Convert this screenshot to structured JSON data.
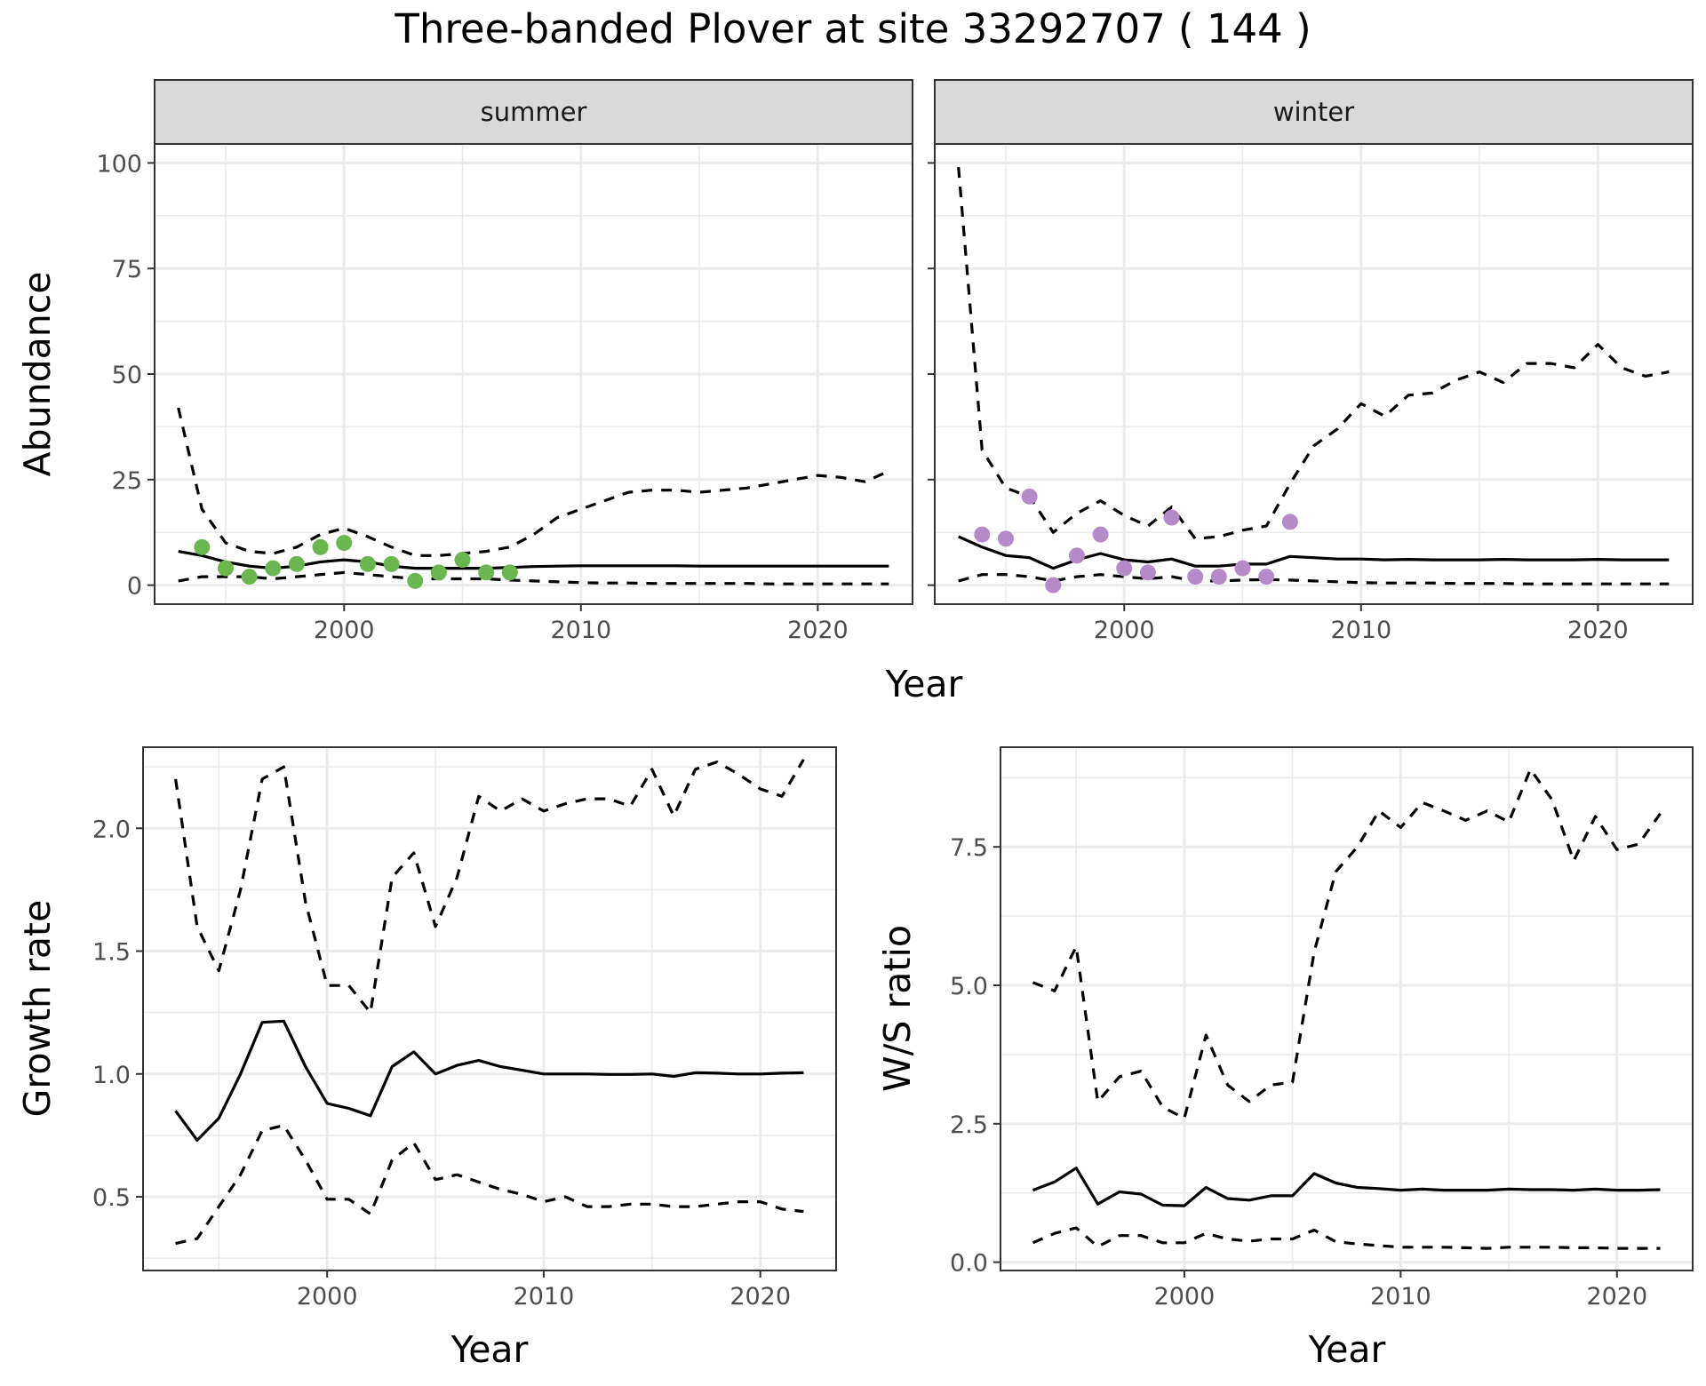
{
  "title": "Three-banded Plover at site 33292707 ( 144 )",
  "colors": {
    "summer_points": "#6ab74f",
    "winter_points": "#b48ac8",
    "line": "#000000",
    "grid": "#ebebeb",
    "strip_bg": "#d9d9d9"
  },
  "chart_data": [
    {
      "type": "line",
      "facet": "summer",
      "xlabel": "Year",
      "ylabel": "Abundance",
      "xlim": [
        1992,
        2024
      ],
      "ylim": [
        -4.5,
        104.5
      ],
      "xticks": [
        2000,
        2010,
        2020
      ],
      "yticks": [
        0,
        25,
        50,
        75,
        100
      ],
      "grid": true,
      "series": [
        {
          "role": "estimate",
          "style": "solid",
          "x": [
            1993,
            1994,
            1995,
            1996,
            1997,
            1998,
            1999,
            2000,
            2001,
            2002,
            2003,
            2004,
            2005,
            2006,
            2007,
            2008,
            2009,
            2010,
            2011,
            2012,
            2013,
            2014,
            2015,
            2016,
            2017,
            2018,
            2019,
            2020,
            2021,
            2022,
            2023
          ],
          "y": [
            8,
            7,
            5.5,
            4.5,
            4,
            4.5,
            5.5,
            6,
            5.5,
            4.5,
            4,
            4,
            4,
            4,
            4.2,
            4.4,
            4.5,
            4.6,
            4.6,
            4.6,
            4.6,
            4.6,
            4.5,
            4.5,
            4.5,
            4.5,
            4.5,
            4.5,
            4.5,
            4.5,
            4.5
          ]
        },
        {
          "role": "upper",
          "style": "dashed",
          "x": [
            1993,
            1994,
            1995,
            1996,
            1997,
            1998,
            1999,
            2000,
            2001,
            2002,
            2003,
            2004,
            2005,
            2006,
            2007,
            2008,
            2009,
            2010,
            2011,
            2012,
            2013,
            2014,
            2015,
            2016,
            2017,
            2018,
            2019,
            2020,
            2021,
            2022,
            2023
          ],
          "y": [
            42,
            18,
            10,
            8,
            7.5,
            9,
            12,
            13.5,
            11.5,
            9,
            7,
            7,
            7.5,
            8,
            9,
            12,
            16,
            18,
            20,
            22,
            22.5,
            22.5,
            22,
            22.5,
            23,
            24,
            25,
            26,
            25.5,
            24.5,
            27
          ]
        },
        {
          "role": "lower",
          "style": "dashed",
          "x": [
            1993,
            1994,
            1995,
            1996,
            1997,
            1998,
            1999,
            2000,
            2001,
            2002,
            2003,
            2004,
            2005,
            2006,
            2007,
            2008,
            2009,
            2010,
            2011,
            2012,
            2013,
            2014,
            2015,
            2016,
            2017,
            2018,
            2019,
            2020,
            2021,
            2022,
            2023
          ],
          "y": [
            1,
            2,
            2,
            2,
            1.5,
            2,
            2.5,
            3,
            2.5,
            2,
            1.5,
            1.5,
            1.5,
            1.5,
            1.2,
            1,
            0.8,
            0.6,
            0.5,
            0.5,
            0.4,
            0.4,
            0.4,
            0.4,
            0.4,
            0.3,
            0.3,
            0.3,
            0.3,
            0.3,
            0.3
          ]
        }
      ],
      "points": {
        "x": [
          1994,
          1995,
          1996,
          1997,
          1998,
          1999,
          2000,
          2001,
          2002,
          2003,
          2004,
          2005,
          2006,
          2007
        ],
        "y": [
          9,
          4,
          2,
          4,
          5,
          9,
          10,
          5,
          5,
          1,
          3,
          6,
          3,
          3
        ]
      }
    },
    {
      "type": "line",
      "facet": "winter",
      "xlabel": "Year",
      "ylabel": "Abundance",
      "xlim": [
        1992,
        2024
      ],
      "ylim": [
        -4.5,
        104.5
      ],
      "xticks": [
        2000,
        2010,
        2020
      ],
      "yticks": [
        0,
        25,
        50,
        75,
        100
      ],
      "grid": true,
      "series": [
        {
          "role": "estimate",
          "style": "solid",
          "x": [
            1993,
            1994,
            1995,
            1996,
            1997,
            1998,
            1999,
            2000,
            2001,
            2002,
            2003,
            2004,
            2005,
            2006,
            2007,
            2008,
            2009,
            2010,
            2011,
            2012,
            2013,
            2014,
            2015,
            2016,
            2017,
            2018,
            2019,
            2020,
            2021,
            2022,
            2023
          ],
          "y": [
            11.5,
            9,
            7,
            6.5,
            4,
            6,
            7.5,
            6,
            5.5,
            6.2,
            4.5,
            4.5,
            5,
            5,
            6.8,
            6.5,
            6.2,
            6.2,
            6,
            6.1,
            6,
            6,
            6,
            6.1,
            6,
            6,
            6,
            6.1,
            6,
            6,
            6
          ]
        },
        {
          "role": "upper",
          "style": "dashed",
          "x": [
            1993,
            1994,
            1995,
            1996,
            1997,
            1998,
            1999,
            2000,
            2001,
            2002,
            2003,
            2004,
            2005,
            2006,
            2007,
            2008,
            2009,
            2010,
            2011,
            2012,
            2013,
            2014,
            2015,
            2016,
            2017,
            2018,
            2019,
            2020,
            2021,
            2022,
            2023
          ],
          "y": [
            99,
            32,
            23,
            21,
            12.5,
            17,
            20,
            16.5,
            14,
            18.5,
            11,
            11.5,
            13,
            14,
            24,
            33,
            37,
            43,
            40,
            45,
            45.5,
            48.5,
            50.5,
            48,
            52.5,
            52.5,
            51.5,
            57,
            51.5,
            49.5,
            50.5
          ]
        },
        {
          "role": "lower",
          "style": "dashed",
          "x": [
            1993,
            1994,
            1995,
            1996,
            1997,
            1998,
            1999,
            2000,
            2001,
            2002,
            2003,
            2004,
            2005,
            2006,
            2007,
            2008,
            2009,
            2010,
            2011,
            2012,
            2013,
            2014,
            2015,
            2016,
            2017,
            2018,
            2019,
            2020,
            2021,
            2022,
            2023
          ],
          "y": [
            1,
            2.5,
            2.5,
            2,
            1,
            2,
            2.5,
            2,
            1.5,
            2,
            1,
            1,
            1.2,
            1.3,
            1.2,
            1,
            0.8,
            0.6,
            0.5,
            0.5,
            0.5,
            0.4,
            0.4,
            0.4,
            0.3,
            0.3,
            0.3,
            0.3,
            0.3,
            0.3,
            0.3
          ]
        }
      ],
      "points": {
        "x": [
          1994,
          1995,
          1996,
          1997,
          1998,
          1999,
          2000,
          2001,
          2002,
          2003,
          2004,
          2005,
          2006,
          2007
        ],
        "y": [
          12,
          11,
          21,
          0,
          7,
          12,
          4,
          3,
          16,
          2,
          2,
          4,
          2,
          15
        ]
      }
    },
    {
      "type": "line",
      "xlabel": "Year",
      "ylabel": "Growth rate",
      "xlim": [
        1991.5,
        2023.5
      ],
      "ylim": [
        0.2,
        2.33
      ],
      "xticks": [
        2000,
        2010,
        2020
      ],
      "yticks": [
        0.5,
        1.0,
        1.5,
        2.0
      ],
      "ytick_labels": [
        "0.5",
        "1.0",
        "1.5",
        "2.0"
      ],
      "grid": true,
      "series": [
        {
          "role": "estimate",
          "style": "solid",
          "x": [
            1993,
            1994,
            1995,
            1996,
            1997,
            1998,
            1999,
            2000,
            2001,
            2002,
            2003,
            2004,
            2005,
            2006,
            2007,
            2008,
            2009,
            2010,
            2011,
            2012,
            2013,
            2014,
            2015,
            2016,
            2017,
            2018,
            2019,
            2020,
            2021,
            2022
          ],
          "y": [
            0.85,
            0.73,
            0.82,
            1.0,
            1.21,
            1.215,
            1.03,
            0.88,
            0.86,
            0.83,
            1.03,
            1.09,
            1.0,
            1.035,
            1.055,
            1.03,
            1.015,
            1.0,
            1.0,
            1.0,
            0.998,
            0.998,
            1.0,
            0.99,
            1.005,
            1.003,
            1.0,
            1.0,
            1.003,
            1.005
          ]
        },
        {
          "role": "upper",
          "style": "dashed",
          "x": [
            1993,
            1994,
            1995,
            1996,
            1997,
            1998,
            1999,
            2000,
            2001,
            2002,
            2003,
            2004,
            2005,
            2006,
            2007,
            2008,
            2009,
            2010,
            2011,
            2012,
            2013,
            2014,
            2015,
            2016,
            2017,
            2018,
            2019,
            2020,
            2021,
            2022
          ],
          "y": [
            2.2,
            1.6,
            1.42,
            1.75,
            2.2,
            2.25,
            1.7,
            1.36,
            1.36,
            1.25,
            1.8,
            1.9,
            1.6,
            1.8,
            2.13,
            2.07,
            2.12,
            2.07,
            2.1,
            2.12,
            2.12,
            2.09,
            2.24,
            2.05,
            2.24,
            2.27,
            2.22,
            2.16,
            2.13,
            2.28
          ]
        },
        {
          "role": "lower",
          "style": "dashed",
          "x": [
            1993,
            1994,
            1995,
            1996,
            1997,
            1998,
            1999,
            2000,
            2001,
            2002,
            2003,
            2004,
            2005,
            2006,
            2007,
            2008,
            2009,
            2010,
            2011,
            2012,
            2013,
            2014,
            2015,
            2016,
            2017,
            2018,
            2019,
            2020,
            2021,
            2022
          ],
          "y": [
            0.31,
            0.33,
            0.46,
            0.59,
            0.77,
            0.79,
            0.65,
            0.49,
            0.49,
            0.43,
            0.65,
            0.72,
            0.57,
            0.59,
            0.56,
            0.53,
            0.51,
            0.48,
            0.5,
            0.46,
            0.46,
            0.47,
            0.47,
            0.46,
            0.46,
            0.47,
            0.48,
            0.48,
            0.45,
            0.44
          ]
        }
      ]
    },
    {
      "type": "line",
      "xlabel": "Year",
      "ylabel": "W/S ratio",
      "xlim": [
        1991.5,
        2023.5
      ],
      "ylim": [
        -0.15,
        9.3
      ],
      "xticks": [
        2000,
        2010,
        2020
      ],
      "yticks": [
        0.0,
        2.5,
        5.0,
        7.5
      ],
      "ytick_labels": [
        "0.0",
        "2.5",
        "5.0",
        "7.5"
      ],
      "grid": true,
      "series": [
        {
          "role": "estimate",
          "style": "solid",
          "x": [
            1993,
            1994,
            1995,
            1996,
            1997,
            1998,
            1999,
            2000,
            2001,
            2002,
            2003,
            2004,
            2005,
            2006,
            2007,
            2008,
            2009,
            2010,
            2011,
            2012,
            2013,
            2014,
            2015,
            2016,
            2017,
            2018,
            2019,
            2020,
            2021,
            2022
          ],
          "y": [
            1.3,
            1.45,
            1.7,
            1.05,
            1.27,
            1.23,
            1.03,
            1.02,
            1.35,
            1.15,
            1.12,
            1.2,
            1.2,
            1.6,
            1.43,
            1.35,
            1.33,
            1.3,
            1.32,
            1.3,
            1.3,
            1.3,
            1.32,
            1.31,
            1.31,
            1.3,
            1.32,
            1.3,
            1.3,
            1.31
          ]
        },
        {
          "role": "upper",
          "style": "dashed",
          "x": [
            1993,
            1994,
            1995,
            1996,
            1997,
            1998,
            1999,
            2000,
            2001,
            2002,
            2003,
            2004,
            2005,
            2006,
            2007,
            2008,
            2009,
            2010,
            2011,
            2012,
            2013,
            2014,
            2015,
            2016,
            2017,
            2018,
            2019,
            2020,
            2021,
            2022
          ],
          "y": [
            5.05,
            4.9,
            5.7,
            2.9,
            3.35,
            3.45,
            2.8,
            2.6,
            4.1,
            3.2,
            2.9,
            3.2,
            3.25,
            5.6,
            7.05,
            7.5,
            8.15,
            7.85,
            8.3,
            8.15,
            7.98,
            8.15,
            7.95,
            8.9,
            8.35,
            7.25,
            8.05,
            7.45,
            7.55,
            8.1
          ]
        },
        {
          "role": "lower",
          "style": "dashed",
          "x": [
            1993,
            1994,
            1995,
            1996,
            1997,
            1998,
            1999,
            2000,
            2001,
            2002,
            2003,
            2004,
            2005,
            2006,
            2007,
            2008,
            2009,
            2010,
            2011,
            2012,
            2013,
            2014,
            2015,
            2016,
            2017,
            2018,
            2019,
            2020,
            2021,
            2022
          ],
          "y": [
            0.35,
            0.52,
            0.62,
            0.28,
            0.48,
            0.48,
            0.35,
            0.35,
            0.52,
            0.42,
            0.38,
            0.42,
            0.42,
            0.58,
            0.37,
            0.33,
            0.3,
            0.27,
            0.27,
            0.27,
            0.26,
            0.25,
            0.27,
            0.27,
            0.27,
            0.26,
            0.26,
            0.25,
            0.25,
            0.25
          ]
        }
      ]
    }
  ]
}
